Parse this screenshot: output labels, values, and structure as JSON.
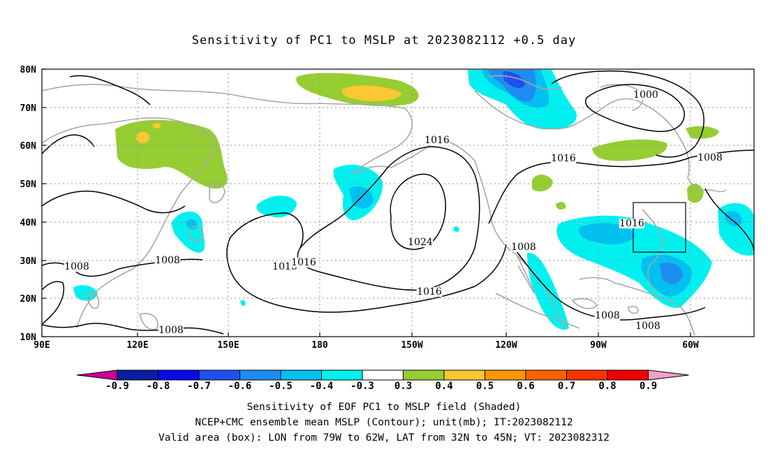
{
  "title": "Sensitivity of PC1 to MSLP at 2023082112 +0.5 day",
  "lat_labels": [
    "80N",
    "70N",
    "60N",
    "50N",
    "40N",
    "30N",
    "20N",
    "10N"
  ],
  "lon_labels": [
    "90E",
    "120E",
    "150E",
    "180",
    "150W",
    "120W",
    "90W",
    "60W"
  ],
  "contour_labels": [
    "1000",
    "1008",
    "1008",
    "1008",
    "1008",
    "1008",
    "1016",
    "1016",
    "1016",
    "1016",
    "1016",
    "1016",
    "1024"
  ],
  "colorbar": {
    "labels": [
      "-0.9",
      "-0.8",
      "-0.7",
      "-0.6",
      "-0.5",
      "-0.4",
      "-0.3",
      "0.3",
      "0.4",
      "0.5",
      "0.6",
      "0.7",
      "0.8",
      "0.9"
    ],
    "colors": [
      "#c8009b",
      "#0a1ea0",
      "#0a0ae6",
      "#1e50f0",
      "#1e8cf0",
      "#00c0f0",
      "#00f0f0",
      "#ffffff",
      "#96cd32",
      "#fac832",
      "#fa9600",
      "#fa6400",
      "#fa3200",
      "#f00000",
      "#f5a0c8"
    ]
  },
  "captions": [
    "Sensitivity of EOF PC1 to MSLP field (Shaded)",
    "NCEP+CMC ensemble mean MSLP (Contour); unit(mb); IT:2023082112",
    "Valid area (box): LON from 79W to 62W, LAT from 32N to 45N; VT: 2023082312"
  ]
}
